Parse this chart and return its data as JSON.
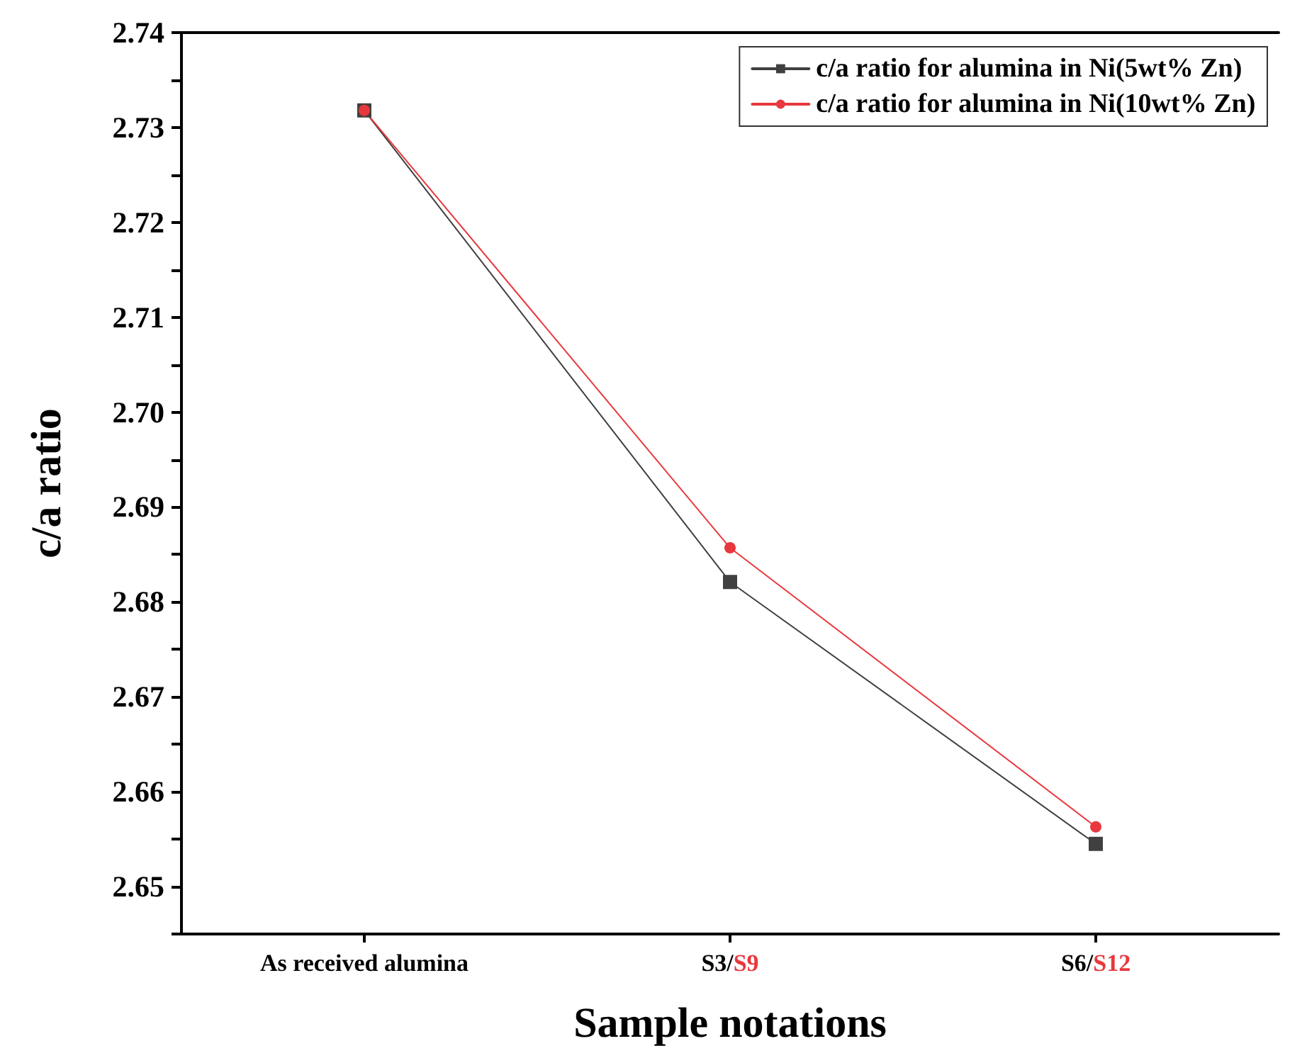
{
  "chart_data": {
    "type": "line",
    "xlabel": "Sample notations",
    "ylabel": "c/a ratio",
    "categories": [
      "As received alumina",
      "S3/S9",
      "S6/S12"
    ],
    "series": [
      {
        "name": "c/a ratio for alumina in Ni(5wt% Zn)",
        "color": "#404040",
        "marker": "square",
        "values": [
          2.7318,
          2.6821,
          2.6545
        ]
      },
      {
        "name": "c/a ratio for alumina in Ni(10wt% Zn)",
        "color": "#e8383d",
        "marker": "circle",
        "values": [
          2.7318,
          2.6857,
          2.6563
        ]
      }
    ],
    "ylim": [
      2.645,
      2.74
    ],
    "yticks": [
      {
        "value": 2.645,
        "label": null
      },
      2.65,
      {
        "value": 2.655,
        "label": null
      },
      2.66,
      {
        "value": 2.665,
        "label": null
      },
      2.67,
      {
        "value": 2.675,
        "label": null
      },
      2.68,
      {
        "value": 2.685,
        "label": null
      },
      2.69,
      {
        "value": 2.695,
        "label": null
      },
      {
        "value": 2.7,
        "label": "2.70"
      },
      {
        "value": 2.705,
        "label": null
      },
      2.71,
      {
        "value": 2.715,
        "label": null
      },
      2.72,
      {
        "value": 2.725,
        "label": null
      },
      2.73,
      {
        "value": 2.735,
        "label": null
      },
      2.74
    ],
    "legend": "top right",
    "grid": false,
    "line_style": "solid"
  }
}
